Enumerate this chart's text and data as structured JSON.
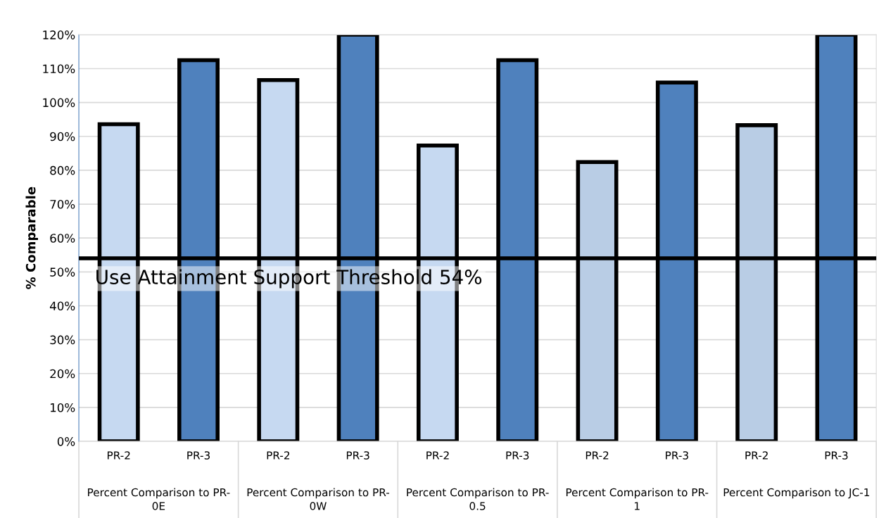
{
  "chart_data": {
    "type": "bar",
    "ylabel": "% Comparable",
    "categories": [
      "PR-2",
      "PR-3",
      "PR-2",
      "PR-3",
      "PR-2",
      "PR-3",
      "PR-2",
      "PR-3",
      "PR-2",
      "PR-3"
    ],
    "values": [
      93.6,
      112.5,
      106.6,
      120,
      87.3,
      112.5,
      82.4,
      105.9,
      93.3,
      120
    ],
    "colors": [
      "#c6d9f1",
      "#4f81bd",
      "#c6d9f1",
      "#4f81bd",
      "#c6d9f1",
      "#4f81bd",
      "#b9cde5",
      "#4f81bd",
      "#b9cde5",
      "#4f81bd"
    ],
    "ylim": [
      0,
      120
    ],
    "yticks": [
      {
        "value": 0,
        "label": "0%"
      },
      {
        "value": 10,
        "label": "10%"
      },
      {
        "value": 20,
        "label": "20%"
      },
      {
        "value": 30,
        "label": "30%"
      },
      {
        "value": 40,
        "label": "40%"
      },
      {
        "value": 50,
        "label": "50%"
      },
      {
        "value": 60,
        "label": "60%"
      },
      {
        "value": 70,
        "label": "70%"
      },
      {
        "value": 80,
        "label": "80%"
      },
      {
        "value": 90,
        "label": "90%"
      },
      {
        "value": 100,
        "label": "100%"
      },
      {
        "value": 110,
        "label": "110%"
      },
      {
        "value": 120,
        "label": "120%"
      }
    ],
    "grid": "y",
    "ref_lines": [
      {
        "axis": "y",
        "value": 54,
        "label": "Use Attainment Support Threshold 54%",
        "color": "#000000"
      }
    ],
    "annotations": [
      "Percent Comparison to PR-\n0E",
      "Percent Comparison to PR-\n0W",
      "Percent Comparison to PR-\n0.5",
      "Percent Comparison to PR-\n1",
      "Percent Comparison to JC-1"
    ]
  }
}
